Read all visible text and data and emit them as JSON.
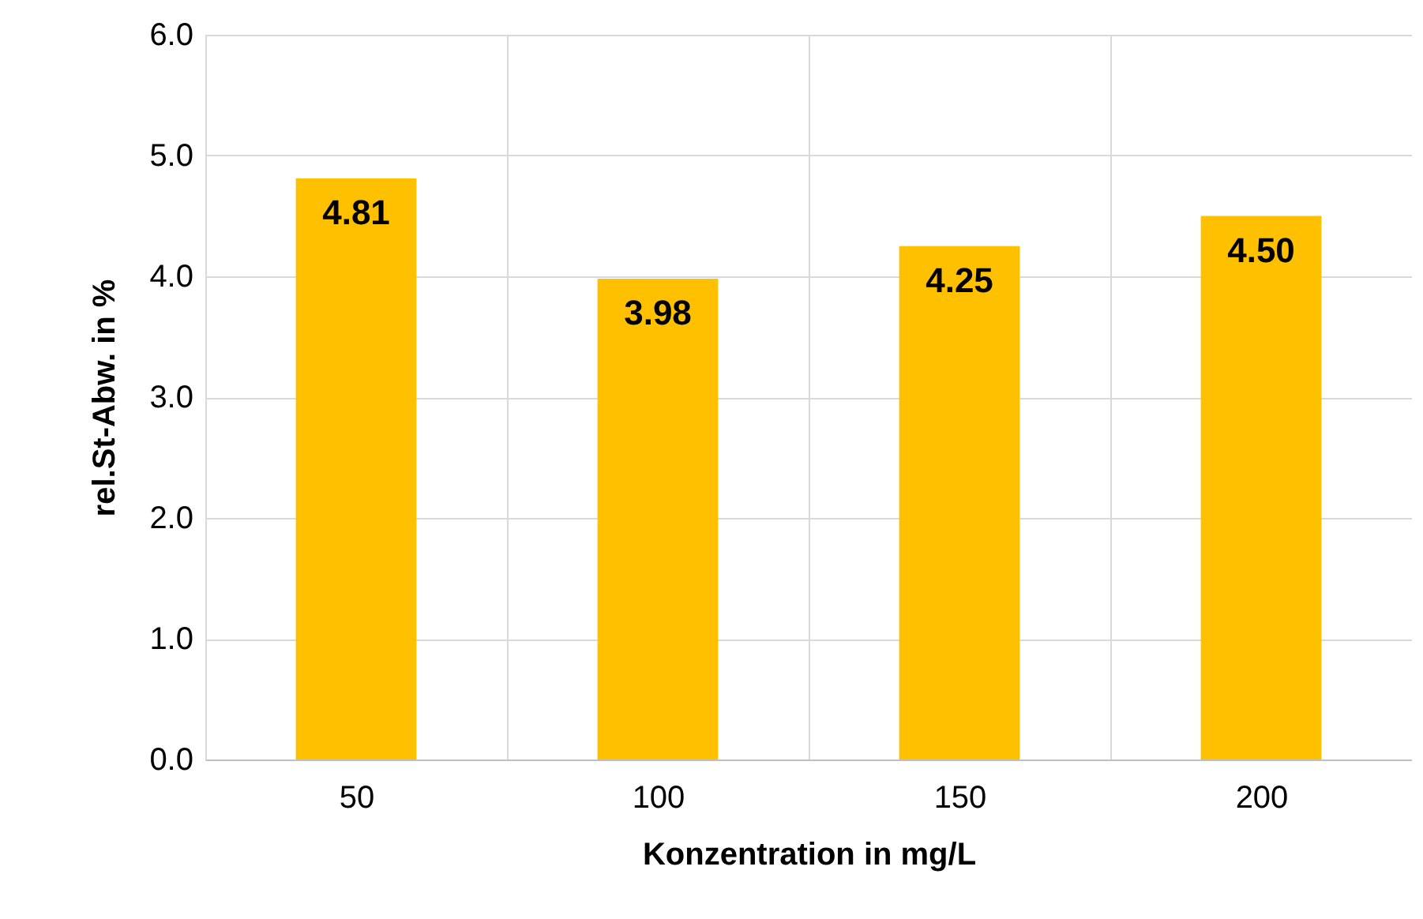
{
  "chart_data": {
    "type": "bar",
    "xlabel": "Konzentration in mg/L",
    "ylabel": "rel.St-Abw. in %",
    "categories": [
      "50",
      "100",
      "150",
      "200"
    ],
    "values": [
      4.81,
      3.98,
      4.25,
      4.5
    ],
    "value_labels": [
      "4.81",
      "3.98",
      "4.25",
      "4.50"
    ],
    "color": "#ffc000",
    "ylim": [
      0,
      6
    ],
    "yticks": [
      {
        "value": 0,
        "label": "0.0"
      },
      {
        "value": 1,
        "label": "1.0"
      },
      {
        "value": 2,
        "label": "2.0"
      },
      {
        "value": 3,
        "label": "3.0"
      },
      {
        "value": 4,
        "label": "4.0"
      },
      {
        "value": 5,
        "label": "5.0"
      },
      {
        "value": 6,
        "label": "6.0"
      }
    ],
    "grid": true
  }
}
